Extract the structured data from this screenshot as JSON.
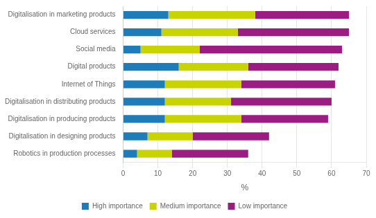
{
  "chart_data": {
    "type": "bar",
    "orientation": "horizontal",
    "stacked": true,
    "categories": [
      "Digitalisation in marketing products",
      "Cloud services",
      "Social media",
      "Digital products",
      "Internet of Things",
      "Digitalisation in distributing products",
      "Digitalisation in producing products",
      "Digitalisation in designing products",
      "Robotics in production processes"
    ],
    "series": [
      {
        "name": "High importance",
        "color": "#1e7cb8",
        "values": [
          13,
          11,
          5,
          16,
          12,
          12,
          12,
          7,
          4
        ]
      },
      {
        "name": "Medium importance",
        "color": "#c8d400",
        "values": [
          25,
          22,
          17,
          20,
          22,
          19,
          22,
          13,
          10
        ]
      },
      {
        "name": "Low importance",
        "color": "#9b1d82",
        "values": [
          27,
          32,
          41,
          26,
          27,
          29,
          25,
          22,
          22
        ]
      }
    ],
    "xlabel": "%",
    "xlim": [
      0,
      70
    ],
    "xticks": [
      0,
      10,
      20,
      30,
      40,
      50,
      60,
      70
    ],
    "grid": true,
    "legend": "bottom"
  }
}
